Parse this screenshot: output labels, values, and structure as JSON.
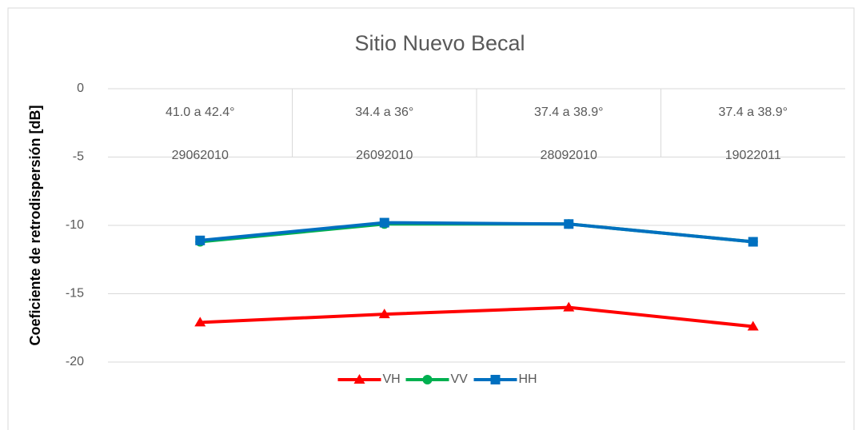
{
  "chart_data": {
    "type": "line",
    "title": "Sitio Nuevo Becal",
    "y_label": "Coeficiente de retrodispersión [dB]",
    "categories": [
      [
        "41.0 a 42.4°",
        "29062010"
      ],
      [
        "34.4 a 36°",
        "26092010"
      ],
      [
        "37.4 a 38.9°",
        "28092010"
      ],
      [
        "37.4 a 38.9°",
        "19022011"
      ]
    ],
    "series": [
      {
        "name": "VH",
        "color": "#ff0000",
        "marker": "triangle",
        "values": [
          -17.1,
          -16.5,
          -16.0,
          -17.4
        ]
      },
      {
        "name": "VV",
        "color": "#00b050",
        "marker": "circle",
        "values": [
          -11.2,
          -9.9,
          -9.9,
          -11.2
        ]
      },
      {
        "name": "HH",
        "color": "#0070c0",
        "marker": "square",
        "values": [
          -11.1,
          -9.8,
          -9.9,
          -11.2
        ]
      }
    ],
    "ylim": [
      -20,
      0
    ],
    "yticks": [
      0,
      -5,
      -10,
      -15,
      -20
    ],
    "grid": true,
    "legend": "bottom"
  }
}
